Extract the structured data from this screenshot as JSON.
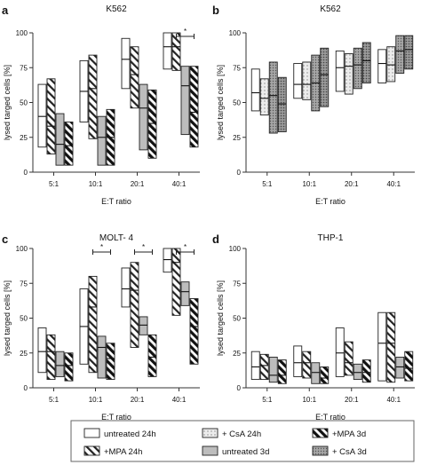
{
  "figure": {
    "legend_entries": [
      {
        "label": "untreated  24h",
        "fill": "open"
      },
      {
        "label": "+MPA  24h",
        "fill": "hatch"
      },
      {
        "label": "+ CsA  24h",
        "fill": "dotlight"
      },
      {
        "label": "untreated  3d",
        "fill": "gray"
      },
      {
        "label": "+MPA  3d",
        "fill": "hatchbold"
      },
      {
        "label": "+ CsA  3d",
        "fill": "dotdark"
      }
    ]
  },
  "chart_data": [
    {
      "panel": "a",
      "title": "K562",
      "type": "floating-bar",
      "xlabel": "E:T ratio",
      "ylabel": "lysed targed cells [%]",
      "ylim": [
        0,
        100
      ],
      "yticks": [
        0,
        25,
        50,
        75,
        100
      ],
      "categories": [
        "5:1",
        "10:1",
        "20:1",
        "40:1"
      ],
      "series": [
        {
          "name": "untreated  24h",
          "fill": "open",
          "bars": [
            [
              18,
              63,
              40
            ],
            [
              36,
              80,
              58
            ],
            [
              60,
              96,
              81
            ],
            [
              74,
              100,
              90
            ]
          ]
        },
        {
          "name": "+MPA  24h",
          "fill": "hatch",
          "bars": [
            [
              13,
              67,
              33
            ],
            [
              24,
              84,
              60
            ],
            [
              46,
              90,
              70
            ],
            [
              73,
              100,
              90
            ]
          ]
        },
        {
          "name": "untreated  3d",
          "fill": "gray",
          "bars": [
            [
              5,
              42,
              20
            ],
            [
              5,
              40,
              25
            ],
            [
              16,
              63,
              46
            ],
            [
              27,
              76,
              62
            ]
          ]
        },
        {
          "name": "+MPA  3d",
          "fill": "hatchbold",
          "bars": [
            [
              5,
              36,
              19
            ],
            [
              5,
              45,
              25
            ],
            [
              10,
              59,
              35
            ],
            [
              18,
              76,
              43
            ]
          ]
        }
      ],
      "significance": [
        {
          "category": "40:1",
          "label": "*"
        }
      ]
    },
    {
      "panel": "b",
      "title": "K562",
      "type": "floating-bar",
      "xlabel": "E:T ratio",
      "ylabel": "lysed targed cells [%]",
      "ylim": [
        0,
        100
      ],
      "yticks": [
        0,
        25,
        50,
        75,
        100
      ],
      "categories": [
        "5:1",
        "10:1",
        "20:1",
        "40:1"
      ],
      "series": [
        {
          "name": "untreated  24h",
          "fill": "open",
          "bars": [
            [
              44,
              74,
              57
            ],
            [
              53,
              78,
              63
            ],
            [
              58,
              87,
              75
            ],
            [
              64,
              88,
              78
            ]
          ]
        },
        {
          "name": "+ CsA  24h",
          "fill": "dotlight",
          "bars": [
            [
              41,
              67,
              53
            ],
            [
              52,
              79,
              63
            ],
            [
              56,
              85,
              76
            ],
            [
              65,
              90,
              77
            ]
          ]
        },
        {
          "name": "+ CsA  3d",
          "fill": "dotdark",
          "bars": [
            [
              28,
              79,
              55
            ],
            [
              44,
              84,
              64
            ],
            [
              60,
              89,
              77
            ],
            [
              71,
              98,
              87
            ]
          ]
        },
        {
          "name": "+MPA  3d",
          "fill": "dotdark2",
          "bars": [
            [
              29,
              68,
              49
            ],
            [
              47,
              89,
              70
            ],
            [
              64,
              93,
              80
            ],
            [
              74,
              98,
              88
            ]
          ]
        }
      ],
      "significance": []
    },
    {
      "panel": "c",
      "title": "MOLT- 4",
      "type": "floating-bar",
      "xlabel": "E:T ratio",
      "ylabel": "lysed targed cells [%]",
      "ylim": [
        0,
        100
      ],
      "yticks": [
        0,
        25,
        50,
        75,
        100
      ],
      "categories": [
        "5:1",
        "10:1",
        "20:1",
        "40:1"
      ],
      "series": [
        {
          "name": "untreated  24h",
          "fill": "open",
          "bars": [
            [
              11,
              43,
              26
            ],
            [
              17,
              71,
              44
            ],
            [
              58,
              86,
              71
            ],
            [
              83,
              100,
              92
            ]
          ]
        },
        {
          "name": "+MPA  24h",
          "fill": "hatch",
          "bars": [
            [
              6,
              38,
              26
            ],
            [
              11,
              80,
              58
            ],
            [
              29,
              90,
              70
            ],
            [
              52,
              100,
              90
            ]
          ]
        },
        {
          "name": "untreated  3d",
          "fill": "gray",
          "bars": [
            [
              8,
              26,
              16
            ],
            [
              7,
              37,
              29
            ],
            [
              38,
              51,
              45
            ],
            [
              59,
              76,
              69
            ]
          ]
        },
        {
          "name": "+MPA  3d",
          "fill": "hatchbold",
          "bars": [
            [
              5,
              25,
              16
            ],
            [
              6,
              32,
              21
            ],
            [
              8,
              38,
              22
            ],
            [
              17,
              64,
              44
            ]
          ]
        }
      ],
      "significance": [
        {
          "category": "10:1",
          "label": "*"
        },
        {
          "category": "20:1",
          "label": "*"
        },
        {
          "category": "40:1",
          "label": "*"
        }
      ]
    },
    {
      "panel": "d",
      "title": "THP-1",
      "type": "floating-bar",
      "xlabel": "E:T ratio",
      "ylabel": "lysed targed cells [%]",
      "ylim": [
        0,
        100
      ],
      "yticks": [
        0,
        25,
        50,
        75,
        100
      ],
      "categories": [
        "5:1",
        "10:1",
        "20:1",
        "40:1"
      ],
      "series": [
        {
          "name": "untreated  24h",
          "fill": "open",
          "bars": [
            [
              6,
              26,
              15
            ],
            [
              8,
              30,
              18
            ],
            [
              8,
              43,
              25
            ],
            [
              5,
              54,
              32
            ]
          ]
        },
        {
          "name": "+MPA  24h",
          "fill": "hatch",
          "bars": [
            [
              6,
              24,
              16
            ],
            [
              7,
              26,
              18
            ],
            [
              9,
              33,
              18
            ],
            [
              4,
              54,
              32
            ]
          ]
        },
        {
          "name": "untreated  3d",
          "fill": "gray",
          "bars": [
            [
              4,
              22,
              9
            ],
            [
              3,
              18,
              11
            ],
            [
              6,
              17,
              11
            ],
            [
              7,
              22,
              15
            ]
          ]
        },
        {
          "name": "+MPA  3d",
          "fill": "hatchbold",
          "bars": [
            [
              3,
              20,
              9
            ],
            [
              3,
              15,
              7
            ],
            [
              4,
              20,
              11
            ],
            [
              5,
              26,
              14
            ]
          ]
        }
      ],
      "significance": []
    }
  ]
}
